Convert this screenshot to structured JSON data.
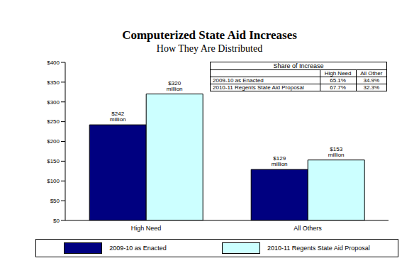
{
  "chart_data": {
    "type": "bar",
    "title": "Computerized State Aid Increases",
    "subtitle": "How They Are Distributed",
    "categories": [
      "High Need",
      "All Others"
    ],
    "series": [
      {
        "name": "2009-10 as Enacted",
        "color": "#000080",
        "values": [
          242,
          129
        ],
        "value_labels": [
          "$242 million",
          "$129 million"
        ]
      },
      {
        "name": "2010-11 Regents State Aid Proposal",
        "color": "#ccffff",
        "values": [
          320,
          153
        ],
        "value_labels": [
          "$320 million",
          "$153 million"
        ]
      }
    ],
    "ylim": [
      0,
      400
    ],
    "yticks": [
      {
        "value": 0,
        "label": "$0"
      },
      {
        "value": 50,
        "label": "$50"
      },
      {
        "value": 100,
        "label": "$100"
      },
      {
        "value": 150,
        "label": "$150"
      },
      {
        "value": 200,
        "label": "$200"
      },
      {
        "value": 250,
        "label": "$250"
      },
      {
        "value": 300,
        "label": "$300"
      },
      {
        "value": 350,
        "label": "$350"
      },
      {
        "value": 400,
        "label": "$400"
      }
    ],
    "grid": false,
    "legend": "bottom",
    "data_labels": true,
    "inset_table": {
      "title": "Share of Increase",
      "columns": [
        "High Need",
        "All Other"
      ],
      "rows": [
        {
          "label": "2009-10 as Enacted",
          "cells": [
            "65.1%",
            "34.9%"
          ]
        },
        {
          "label": "2010-11 Regents State Aid Proposal",
          "cells": [
            "67.7%",
            "32.3%"
          ]
        }
      ]
    }
  }
}
